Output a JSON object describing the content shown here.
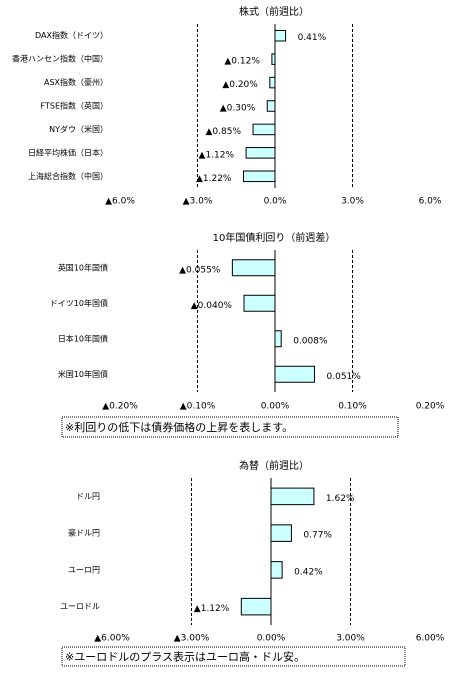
{
  "chart_data": [
    {
      "type": "bar",
      "orientation": "horizontal",
      "title": "株式（前週比）",
      "categories": [
        "DAX指数（ドイツ）",
        "香港ハンセン指数（中国）",
        "ASX指数（豪州）",
        "FTSE指数（英国）",
        "NYダウ（米国）",
        "日経平均株価（日本）",
        "上海総合指数（中国）"
      ],
      "values": [
        0.41,
        -0.12,
        -0.2,
        -0.3,
        -0.85,
        -1.12,
        -1.22
      ],
      "value_labels": [
        "0.41%",
        "▲0.12%",
        "▲0.20%",
        "▲0.30%",
        "▲0.85%",
        "▲1.12%",
        "▲1.22%"
      ],
      "xlim": [
        -6,
        6
      ],
      "xticks": [
        {
          "value": -6,
          "label": "▲6.0%"
        },
        {
          "value": -3,
          "label": "▲3.0%"
        },
        {
          "value": 0,
          "label": "0.0%"
        },
        {
          "value": 3,
          "label": "3.0%"
        },
        {
          "value": 6,
          "label": "6.0%"
        }
      ],
      "grid": true,
      "color": "#ccffff",
      "negative_color": "#ff0000"
    },
    {
      "type": "bar",
      "orientation": "horizontal",
      "title": "10年国債利回り（前週差）",
      "categories": [
        "英国10年国債",
        "ドイツ10年国債",
        "日本10年国債",
        "米国10年国債"
      ],
      "values": [
        -0.055,
        -0.04,
        0.008,
        0.051
      ],
      "value_labels": [
        "▲0.055%",
        "▲0.040%",
        "0.008%",
        "0.051%"
      ],
      "xlim": [
        -0.2,
        0.2
      ],
      "xticks": [
        {
          "value": -0.2,
          "label": "▲0.20%"
        },
        {
          "value": -0.1,
          "label": "▲0.10%"
        },
        {
          "value": 0,
          "label": "0.00%"
        },
        {
          "value": 0.1,
          "label": "0.10%"
        },
        {
          "value": 0.2,
          "label": "0.20%"
        }
      ],
      "grid": true,
      "color": "#ccffff",
      "negative_color": "#ff0000",
      "note": "※利回りの低下は債券価格の上昇を表します。"
    },
    {
      "type": "bar",
      "orientation": "horizontal",
      "title": "為替（前週比）",
      "categories": [
        "ドル円",
        "豪ドル円",
        "ユーロ円",
        "ユーロドル"
      ],
      "values": [
        1.62,
        0.77,
        0.42,
        -1.12
      ],
      "value_labels": [
        "1.62%",
        "0.77%",
        "0.42%",
        "▲1.12%"
      ],
      "xlim": [
        -6,
        6
      ],
      "xticks": [
        {
          "value": -6,
          "label": "▲6.00%"
        },
        {
          "value": -3,
          "label": "▲3.00%"
        },
        {
          "value": 0,
          "label": "0.00%"
        },
        {
          "value": 3,
          "label": "3.00%"
        },
        {
          "value": 6,
          "label": "6.00%"
        }
      ],
      "grid": true,
      "color": "#ccffff",
      "negative_color": "#ff0000",
      "note": "※ユーロドルのプラス表示はユーロ高・ドル安。"
    }
  ]
}
